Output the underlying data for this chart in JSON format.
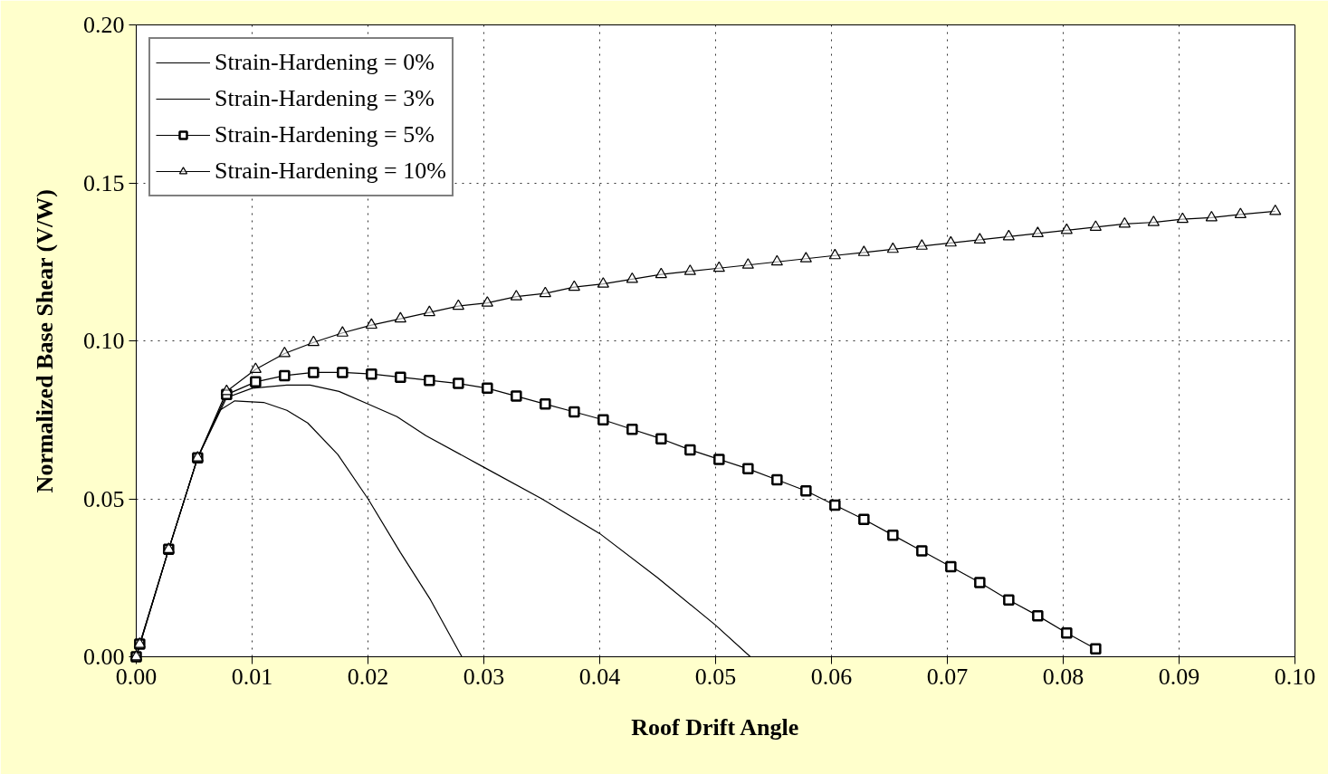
{
  "chart_data": {
    "type": "line",
    "xlabel": "Roof Drift Angle",
    "ylabel": "Normalized Base Shear (V/W)",
    "xlim": [
      0,
      0.1
    ],
    "ylim": [
      0,
      0.2
    ],
    "xticks": [
      {
        "value": 0,
        "label": "0.00"
      },
      {
        "value": 0.01,
        "label": "0.01"
      },
      {
        "value": 0.02,
        "label": "0.02"
      },
      {
        "value": 0.03,
        "label": "0.03"
      },
      {
        "value": 0.04,
        "label": "0.04"
      },
      {
        "value": 0.05,
        "label": "0.05"
      },
      {
        "value": 0.06,
        "label": "0.06"
      },
      {
        "value": 0.07,
        "label": "0.07"
      },
      {
        "value": 0.08,
        "label": "0.08"
      },
      {
        "value": 0.09,
        "label": "0.09"
      },
      {
        "value": 0.1,
        "label": "0.10"
      }
    ],
    "yticks": [
      {
        "value": 0,
        "label": "0.00"
      },
      {
        "value": 0.05,
        "label": "0.05"
      },
      {
        "value": 0.1,
        "label": "0.10"
      },
      {
        "value": 0.15,
        "label": "0.15"
      },
      {
        "value": 0.2,
        "label": "0.20"
      }
    ],
    "grid": true,
    "legend": "top left",
    "line_style": "solid",
    "series": [
      {
        "name": "Strain-Hardening = 0%",
        "color": "#000000",
        "marker": "none",
        "x": [
          0,
          0.0028,
          0.0053,
          0.0072,
          0.0085,
          0.011,
          0.013,
          0.0148,
          0.0174,
          0.02,
          0.0228,
          0.0254,
          0.0281
        ],
        "values": [
          0,
          0.034,
          0.063,
          0.078,
          0.081,
          0.0805,
          0.078,
          0.074,
          0.064,
          0.05,
          0.033,
          0.018,
          0
        ]
      },
      {
        "name": "Strain-Hardening = 3%",
        "color": "#000000",
        "marker": "none",
        "x": [
          0,
          0.0028,
          0.0053,
          0.0078,
          0.01,
          0.013,
          0.015,
          0.0175,
          0.02,
          0.0225,
          0.025,
          0.03,
          0.035,
          0.04,
          0.045,
          0.05,
          0.053
        ],
        "values": [
          0,
          0.034,
          0.063,
          0.082,
          0.085,
          0.086,
          0.086,
          0.084,
          0.08,
          0.076,
          0.07,
          0.06,
          0.05,
          0.039,
          0.025,
          0.01,
          0
        ]
      },
      {
        "name": "Strain-Hardening = 5%",
        "color": "#000000",
        "marker": "square",
        "x": [
          0,
          0.0003,
          0.0028,
          0.0053,
          0.0078,
          0.0103,
          0.0128,
          0.0153,
          0.0178,
          0.0203,
          0.0228,
          0.0253,
          0.0278,
          0.0303,
          0.0328,
          0.0353,
          0.0378,
          0.0403,
          0.0428,
          0.0453,
          0.0478,
          0.0503,
          0.0528,
          0.0553,
          0.0578,
          0.0603,
          0.0628,
          0.0653,
          0.0678,
          0.0703,
          0.0728,
          0.0753,
          0.0778,
          0.0803,
          0.0828
        ],
        "values": [
          0,
          0.004,
          0.034,
          0.063,
          0.083,
          0.087,
          0.089,
          0.09,
          0.09,
          0.0895,
          0.0885,
          0.0875,
          0.0865,
          0.085,
          0.0825,
          0.08,
          0.0775,
          0.075,
          0.072,
          0.069,
          0.0655,
          0.0625,
          0.0595,
          0.056,
          0.0525,
          0.048,
          0.0435,
          0.0385,
          0.0335,
          0.0285,
          0.0235,
          0.018,
          0.013,
          0.0075,
          0.0025
        ]
      },
      {
        "name": "Strain-Hardening = 10%",
        "color": "#000000",
        "marker": "triangle",
        "x": [
          0,
          0.0003,
          0.0028,
          0.0053,
          0.0078,
          0.0103,
          0.0128,
          0.0153,
          0.0178,
          0.0203,
          0.0228,
          0.0253,
          0.0278,
          0.0303,
          0.0328,
          0.0353,
          0.0378,
          0.0403,
          0.0428,
          0.0453,
          0.0478,
          0.0503,
          0.0528,
          0.0553,
          0.0578,
          0.0603,
          0.0628,
          0.0653,
          0.0678,
          0.0703,
          0.0728,
          0.0753,
          0.0778,
          0.0803,
          0.0828,
          0.0853,
          0.0878,
          0.0903,
          0.0928,
          0.0953,
          0.0983
        ],
        "values": [
          0,
          0.004,
          0.034,
          0.063,
          0.084,
          0.091,
          0.096,
          0.0995,
          0.1025,
          0.105,
          0.107,
          0.109,
          0.111,
          0.112,
          0.114,
          0.115,
          0.117,
          0.118,
          0.1195,
          0.121,
          0.122,
          0.123,
          0.124,
          0.125,
          0.126,
          0.127,
          0.128,
          0.129,
          0.13,
          0.131,
          0.132,
          0.133,
          0.134,
          0.135,
          0.136,
          0.137,
          0.1375,
          0.1385,
          0.139,
          0.14,
          0.141
        ]
      }
    ]
  }
}
